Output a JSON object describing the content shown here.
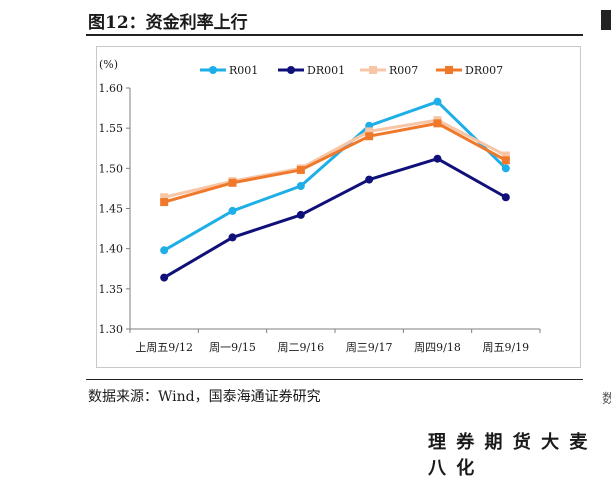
{
  "figure": {
    "title": "图12：资金利率上行",
    "source": "数据来源：Wind，国泰海通证券研究",
    "right_fragment": "数",
    "footer_watermark": "理 券 期 货 大 麦 八 化"
  },
  "chart_data": {
    "type": "line",
    "title": "",
    "ylabel": "(%)",
    "xlabel": "",
    "categories": [
      "上周五9/12",
      "周一9/15",
      "周二9/16",
      "周三9/17",
      "周四9/18",
      "周五9/19"
    ],
    "ylim": [
      1.3,
      1.6
    ],
    "yticks": [
      "1.30",
      "1.35",
      "1.40",
      "1.45",
      "1.50",
      "1.55",
      "1.60"
    ],
    "grid": false,
    "legend_position": "top",
    "series": [
      {
        "name": "R001",
        "color": "#1EAEE8",
        "marker": "circle",
        "values": [
          1.398,
          1.447,
          1.478,
          1.553,
          1.583,
          1.5
        ]
      },
      {
        "name": "DR001",
        "color": "#10107A",
        "marker": "circle",
        "values": [
          1.364,
          1.414,
          1.442,
          1.486,
          1.512,
          1.464
        ]
      },
      {
        "name": "R007",
        "color": "#F7C6A7",
        "marker": "square",
        "values": [
          1.464,
          1.484,
          1.5,
          1.546,
          1.56,
          1.516
        ]
      },
      {
        "name": "DR007",
        "color": "#F0782A",
        "marker": "square",
        "values": [
          1.458,
          1.482,
          1.498,
          1.54,
          1.556,
          1.51
        ]
      }
    ]
  }
}
